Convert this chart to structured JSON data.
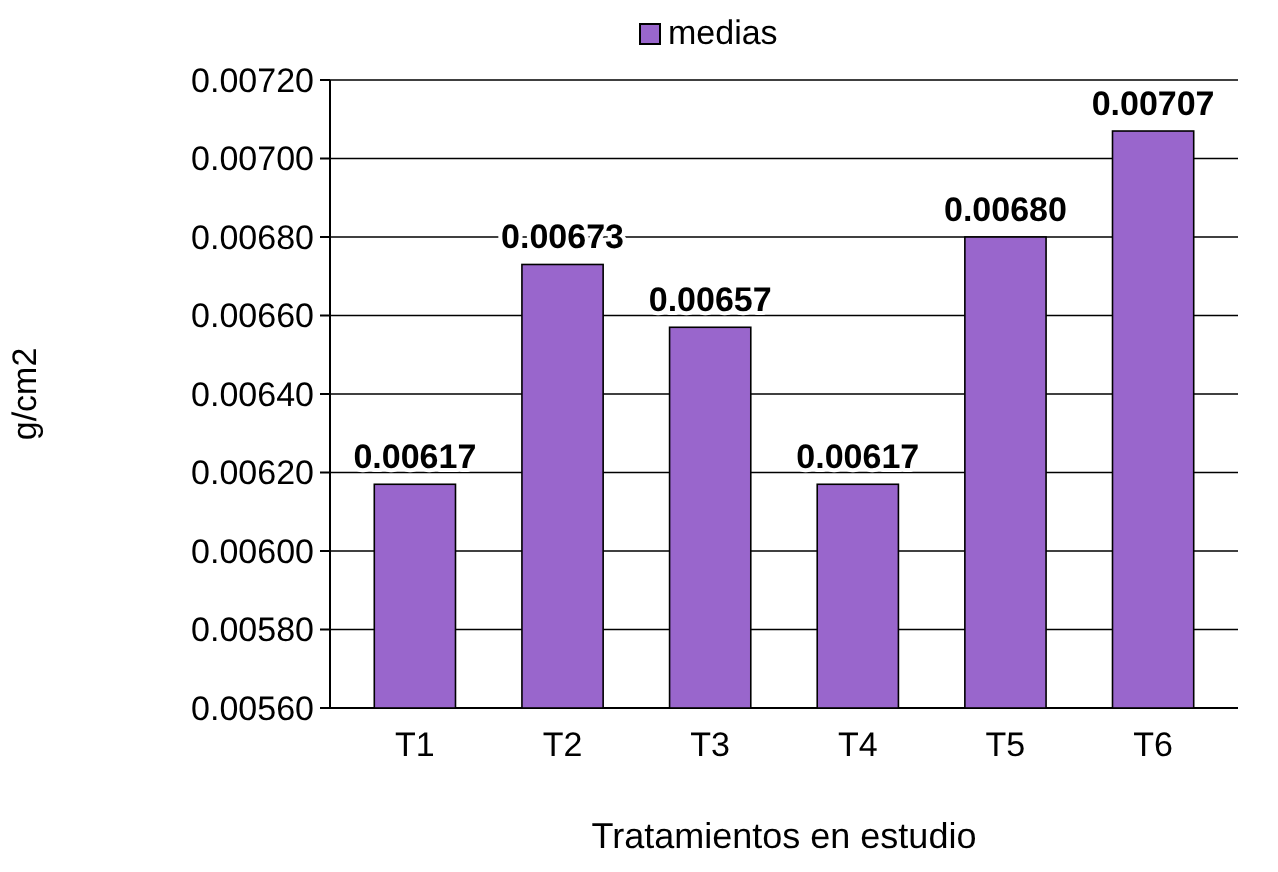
{
  "chart_data": {
    "type": "bar",
    "xlabel": "Tratamientos en estudio",
    "ylabel": "g/cm2",
    "categories": [
      "T1",
      "T2",
      "T3",
      "T4",
      "T5",
      "T6"
    ],
    "series": [
      {
        "name": "medias",
        "color": "#9966cc",
        "values": [
          0.00617,
          0.00673,
          0.00657,
          0.00617,
          0.0068,
          0.00707
        ],
        "value_labels": [
          "0.00617",
          "0.00673",
          "0.00657",
          "0.00617",
          "0.00680",
          "0.00707"
        ]
      }
    ],
    "ylim": [
      0.0056,
      0.0072
    ],
    "yticks": [
      {
        "value": 0.0056,
        "label": "0.00560"
      },
      {
        "value": 0.0058,
        "label": "0.00580"
      },
      {
        "value": 0.006,
        "label": "0.00600"
      },
      {
        "value": 0.0062,
        "label": "0.00620"
      },
      {
        "value": 0.0064,
        "label": "0.00640"
      },
      {
        "value": 0.0066,
        "label": "0.00660"
      },
      {
        "value": 0.0068,
        "label": "0.00680"
      },
      {
        "value": 0.007,
        "label": "0.00700"
      },
      {
        "value": 0.0072,
        "label": "0.00720"
      }
    ],
    "grid": "y",
    "legend": "top"
  }
}
